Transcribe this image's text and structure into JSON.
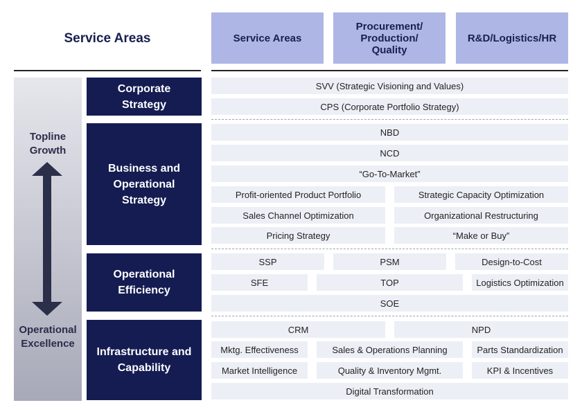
{
  "title": "Service Areas",
  "columns": [
    "Service Areas",
    "Procurement/\nProduction/\nQuality",
    "R&D/Logistics/HR"
  ],
  "axis": {
    "top_label": "Topline\nGrowth",
    "bottom_label": "Operational\nExcellence"
  },
  "categories": [
    {
      "name": "Corporate\nStrategy",
      "services": [
        "SVV (Strategic Visioning and Values)",
        "CPS (Corporate Portfolio Strategy)"
      ]
    },
    {
      "name": "Business and\nOperational\nStrategy",
      "services": [
        "NBD",
        "NCD",
        "“Go-To-Market”",
        "Profit-oriented Product Portfolio",
        "Strategic Capacity Optimization",
        "Sales Channel Optimization",
        "Organizational Restructuring",
        "Pricing Strategy",
        "“Make or Buy”"
      ]
    },
    {
      "name": "Operational\nEfficiency",
      "services": [
        "SSP",
        "PSM",
        "Design-to-Cost",
        "SFE",
        "TOP",
        "Logistics Optimization",
        "SOE"
      ]
    },
    {
      "name": "Infrastructure and\nCapability",
      "services": [
        "CRM",
        "NPD",
        "Mktg. Effectiveness",
        "Sales & Operations Planning",
        "Parts Standardization",
        "Market Intelligence",
        "Quality & Inventory Mgmt.",
        "KPI & Incentives",
        "Digital Transformation"
      ]
    }
  ],
  "colors": {
    "category_bg": "#141c52",
    "column_header_bg": "#aeb6e6",
    "cell_bg": "#eceff5",
    "arrow": "#2b2f4a"
  }
}
